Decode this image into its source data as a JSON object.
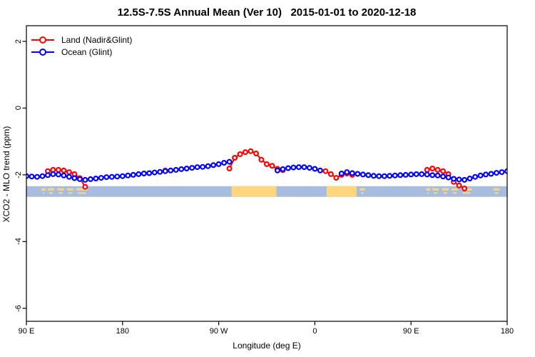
{
  "title": "12.5S-7.5S Annual Mean (Ver 10)   2015-01-01 to 2020-12-18",
  "legend": {
    "items": [
      {
        "label": "Land (Nadir&Glint)",
        "color": "#ff0000"
      },
      {
        "label": "Ocean (Glint)",
        "color": "#0000ff"
      }
    ]
  },
  "axes": {
    "x": {
      "label": "Longitude (deg E)",
      "ticks": [
        {
          "value": 90,
          "label": "90 E"
        },
        {
          "value": 180,
          "label": "180"
        },
        {
          "value": 270,
          "label": "90 W"
        },
        {
          "value": 360,
          "label": "0"
        },
        {
          "value": 450,
          "label": "90 E"
        },
        {
          "value": 540,
          "label": "180"
        }
      ]
    },
    "y": {
      "label": "XCO2 - MLO trend (ppm)",
      "ticks": [
        {
          "value": 2,
          "label": "2"
        },
        {
          "value": 0,
          "label": "0"
        },
        {
          "value": -2,
          "label": "-2"
        },
        {
          "value": -4,
          "label": "-4"
        },
        {
          "value": -6,
          "label": "-6"
        }
      ]
    }
  },
  "chart_data": {
    "type": "line",
    "title": "12.5S-7.5S Annual Mean (Ver 10)   2015-01-01 to 2020-12-18",
    "xlabel": "Longitude (deg E)",
    "ylabel": "XCO2 - MLO trend (ppm)",
    "xlim": [
      90,
      540
    ],
    "ylim": [
      -6.39,
      2.47
    ],
    "grid": false,
    "legend_position": "top-left-inside",
    "marker": "open-circle",
    "series": [
      {
        "name": "Land (Nadir&Glint)",
        "color": "#ff0000",
        "points": [
          [
            110,
            -1.89
          ],
          [
            115,
            -1.85
          ],
          [
            120,
            -1.85
          ],
          [
            125,
            -1.87
          ],
          [
            130,
            -1.92
          ],
          [
            135,
            -1.98
          ],
          [
            140,
            -2.1
          ],
          [
            145,
            -2.36
          ],
          [
            220,
            -1.87
          ],
          [
            280,
            -1.81
          ],
          [
            285,
            -1.49
          ],
          [
            290,
            -1.38
          ],
          [
            295,
            -1.32
          ],
          [
            300,
            -1.29
          ],
          [
            305,
            -1.36
          ],
          [
            310,
            -1.55
          ],
          [
            315,
            -1.68
          ],
          [
            320,
            -1.73
          ],
          [
            325,
            -1.82
          ],
          [
            330,
            -1.86
          ],
          [
            370,
            -1.89
          ],
          [
            375,
            -1.98
          ],
          [
            380,
            -2.09
          ],
          [
            385,
            -2.0
          ],
          [
            390,
            -1.96
          ],
          [
            395,
            -2.0
          ],
          [
            465,
            -1.85
          ],
          [
            470,
            -1.81
          ],
          [
            475,
            -1.85
          ],
          [
            480,
            -1.89
          ],
          [
            485,
            -1.98
          ],
          [
            490,
            -2.21
          ],
          [
            495,
            -2.32
          ],
          [
            500,
            -2.41
          ]
        ]
      },
      {
        "name": "Ocean (Glint)",
        "color": "#0000ff",
        "points": [
          [
            90,
            -2.04
          ],
          [
            95,
            -2.05
          ],
          [
            100,
            -2.06
          ],
          [
            105,
            -2.04
          ],
          [
            110,
            -2.01
          ],
          [
            115,
            -1.98
          ],
          [
            120,
            -1.99
          ],
          [
            125,
            -2.02
          ],
          [
            130,
            -2.06
          ],
          [
            135,
            -2.1
          ],
          [
            140,
            -2.13
          ],
          [
            145,
            -2.15
          ],
          [
            150,
            -2.13
          ],
          [
            155,
            -2.11
          ],
          [
            160,
            -2.09
          ],
          [
            165,
            -2.07
          ],
          [
            170,
            -2.06
          ],
          [
            175,
            -2.05
          ],
          [
            180,
            -2.04
          ],
          [
            185,
            -2.02
          ],
          [
            190,
            -2.0
          ],
          [
            195,
            -1.98
          ],
          [
            200,
            -1.96
          ],
          [
            205,
            -1.95
          ],
          [
            210,
            -1.93
          ],
          [
            215,
            -1.91
          ],
          [
            220,
            -1.89
          ],
          [
            225,
            -1.87
          ],
          [
            230,
            -1.85
          ],
          [
            235,
            -1.83
          ],
          [
            240,
            -1.81
          ],
          [
            245,
            -1.79
          ],
          [
            250,
            -1.77
          ],
          [
            255,
            -1.76
          ],
          [
            260,
            -1.74
          ],
          [
            265,
            -1.71
          ],
          [
            270,
            -1.68
          ],
          [
            275,
            -1.64
          ],
          [
            280,
            -1.61
          ],
          [
            325,
            -1.87
          ],
          [
            330,
            -1.83
          ],
          [
            335,
            -1.8
          ],
          [
            340,
            -1.78
          ],
          [
            345,
            -1.77
          ],
          [
            350,
            -1.77
          ],
          [
            355,
            -1.79
          ],
          [
            360,
            -1.82
          ],
          [
            365,
            -1.87
          ],
          [
            385,
            -1.96
          ],
          [
            390,
            -1.92
          ],
          [
            395,
            -1.95
          ],
          [
            400,
            -1.97
          ],
          [
            405,
            -1.99
          ],
          [
            410,
            -2.01
          ],
          [
            415,
            -2.03
          ],
          [
            420,
            -2.04
          ],
          [
            425,
            -2.04
          ],
          [
            430,
            -2.03
          ],
          [
            435,
            -2.02
          ],
          [
            440,
            -2.01
          ],
          [
            445,
            -2.0
          ],
          [
            450,
            -1.99
          ],
          [
            455,
            -1.98
          ],
          [
            460,
            -1.98
          ],
          [
            465,
            -1.99
          ],
          [
            470,
            -2.01
          ],
          [
            475,
            -2.02
          ],
          [
            480,
            -2.05
          ],
          [
            485,
            -2.08
          ],
          [
            490,
            -2.12
          ],
          [
            495,
            -2.14
          ],
          [
            500,
            -2.15
          ],
          [
            505,
            -2.11
          ],
          [
            510,
            -2.06
          ],
          [
            515,
            -2.02
          ],
          [
            520,
            -1.99
          ],
          [
            525,
            -1.97
          ],
          [
            530,
            -1.94
          ],
          [
            535,
            -1.92
          ],
          [
            540,
            -1.89
          ]
        ]
      }
    ],
    "map_strip": {
      "description": "land/ocean strip for 12.5S-7.5S latitude band",
      "ocean_color": "#a8bcde",
      "land_color": "#fdd67e",
      "y_top": -2.34,
      "y_bottom": -2.66,
      "land_segments": [
        {
          "from": 104,
          "to": 108,
          "type": "speckle"
        },
        {
          "from": 110,
          "to": 116,
          "type": "speckle"
        },
        {
          "from": 119,
          "to": 125,
          "type": "speckle"
        },
        {
          "from": 128,
          "to": 134,
          "type": "speckle"
        },
        {
          "from": 137,
          "to": 147,
          "type": "speckle"
        },
        {
          "from": 282,
          "to": 324,
          "type": "block"
        },
        {
          "from": 371,
          "to": 399,
          "type": "block"
        },
        {
          "from": 402,
          "to": 407,
          "type": "speckle"
        },
        {
          "from": 464,
          "to": 468,
          "type": "speckle"
        },
        {
          "from": 470,
          "to": 476,
          "type": "speckle"
        },
        {
          "from": 479,
          "to": 485,
          "type": "speckle"
        },
        {
          "from": 488,
          "to": 494,
          "type": "speckle"
        },
        {
          "from": 497,
          "to": 507,
          "type": "speckle"
        },
        {
          "from": 527,
          "to": 533,
          "type": "speckle"
        }
      ]
    }
  }
}
